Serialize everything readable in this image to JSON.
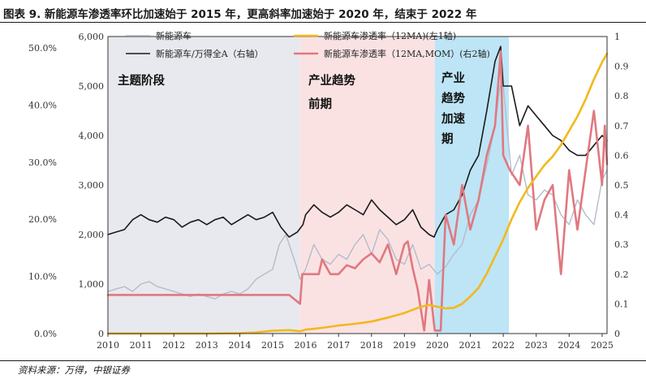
{
  "figure": {
    "title": "图表 9. 新能源车渗透率环比加速始于 2015 年，更高斜率加速始于 2020 年，结束于 2022 年",
    "source": "资料来源：万得，中银证券"
  },
  "colors": {
    "nev_sales": "#b3bccb",
    "index": "#1a1a1a",
    "penetration_12ma": "#f3b81c",
    "penetration_mom": "#e07880",
    "phase1_bg": "#e8e9ee",
    "phase2_bg": "#fae2e3",
    "phase3_bg": "#bde5f5"
  },
  "chart_data": {
    "type": "line",
    "title": "新能源车渗透率环比加速始于 2015 年，更高斜率加速始于 2020 年，结束于 2022 年",
    "xlim": [
      2010.0,
      2025.15
    ],
    "x_ticks": [
      2010,
      2011,
      2012,
      2013,
      2014,
      2015,
      2016,
      2017,
      2018,
      2019,
      2020,
      2021,
      2022,
      2023,
      2024,
      2025
    ],
    "x_tick_labels": [
      "2010",
      "2011",
      "2012",
      "2013",
      "2014",
      "2015",
      "2016",
      "2017",
      "2018",
      "2019",
      "2020",
      "2021",
      "2022",
      "2023",
      "2024",
      "2025"
    ],
    "axes": {
      "left_pct": {
        "ylim": [
          0,
          52
        ],
        "ticks": [
          0,
          10,
          20,
          30,
          40,
          50
        ],
        "tick_labels": [
          "0.0%",
          "10.0%",
          "20.0%",
          "30.0%",
          "40.0%",
          "50.0%"
        ]
      },
      "left_value": {
        "ylim": [
          0,
          6000
        ],
        "ticks": [
          0,
          1000,
          2000,
          3000,
          4000,
          5000,
          6000
        ],
        "tick_labels": [
          "0",
          "1,000",
          "2,000",
          "3,000",
          "4,000",
          "5,000",
          "6,000"
        ]
      },
      "right": {
        "ylim": [
          0,
          1.0
        ],
        "ticks": [
          0,
          0.1,
          0.2,
          0.3,
          0.4,
          0.5,
          0.6,
          0.7,
          0.8,
          0.9,
          1.0
        ],
        "tick_labels": [
          "0",
          "0.1",
          "0.2",
          "0.3",
          "0.4",
          "0.5",
          "0.6",
          "0.7",
          "0.8",
          "0.9",
          "1"
        ]
      }
    },
    "phases": [
      {
        "label_lines": [
          "主题阶段"
        ],
        "x_start": 2010.0,
        "x_end": 2015.83,
        "color_key": "phase1_bg"
      },
      {
        "label_lines": [
          "产业趋势",
          "前期"
        ],
        "x_start": 2015.83,
        "x_end": 2019.92,
        "color_key": "phase2_bg"
      },
      {
        "label_lines": [
          "产业",
          "趋势",
          "加速",
          "期"
        ],
        "x_start": 2019.92,
        "x_end": 2022.17,
        "color_key": "phase3_bg"
      }
    ],
    "legend": [
      {
        "label": "新能源车",
        "color_key": "nev_sales",
        "column": 0,
        "row": 0
      },
      {
        "label": "新能源车渗透率（12MA)(左1轴)",
        "color_key": "penetration_12ma",
        "column": 1,
        "row": 0
      },
      {
        "label": "新能源车/万得全A（右轴）",
        "color_key": "index",
        "column": 0,
        "row": 1
      },
      {
        "label": "新能源车渗透率（12MA,MOM）(右2轴)",
        "color_key": "penetration_mom",
        "column": 1,
        "row": 1
      }
    ],
    "series": [
      {
        "name": "新能源车",
        "axis": "left_value",
        "color_key": "nev_sales",
        "x": [
          2010.0,
          2010.25,
          2010.5,
          2010.75,
          2011.0,
          2011.25,
          2011.5,
          2011.75,
          2012.0,
          2012.25,
          2012.5,
          2012.75,
          2013.0,
          2013.25,
          2013.5,
          2013.75,
          2014.0,
          2014.25,
          2014.5,
          2014.75,
          2015.0,
          2015.2,
          2015.4,
          2015.5,
          2015.7,
          2015.83,
          2016.0,
          2016.25,
          2016.5,
          2016.75,
          2017.0,
          2017.25,
          2017.5,
          2017.75,
          2018.0,
          2018.25,
          2018.5,
          2018.75,
          2019.0,
          2019.25,
          2019.5,
          2019.75,
          2020.0,
          2020.25,
          2020.5,
          2020.75,
          2021.0,
          2021.25,
          2021.5,
          2021.75,
          2021.9,
          2022.0,
          2022.25,
          2022.5,
          2022.75,
          2023.0,
          2023.25,
          2023.5,
          2023.75,
          2024.0,
          2024.25,
          2024.5,
          2024.75,
          2025.0,
          2025.15
        ],
        "values": [
          850,
          900,
          950,
          850,
          1000,
          1050,
          950,
          900,
          850,
          800,
          750,
          800,
          750,
          700,
          800,
          850,
          800,
          900,
          1100,
          1200,
          1300,
          1800,
          2000,
          1800,
          1400,
          1100,
          1300,
          1800,
          1500,
          1400,
          1600,
          1500,
          1800,
          2000,
          1600,
          2100,
          1900,
          1500,
          1400,
          1800,
          1300,
          1400,
          1200,
          1350,
          1600,
          1800,
          2400,
          2700,
          3400,
          4200,
          5000,
          5000,
          3200,
          3600,
          2800,
          2700,
          2900,
          2800,
          2400,
          2200,
          2700,
          2400,
          2200,
          3100,
          3300
        ]
      },
      {
        "name": "新能源车/万得全A（右轴）",
        "axis": "left_value",
        "color_key": "index",
        "x": [
          2010.0,
          2010.25,
          2010.5,
          2010.75,
          2011.0,
          2011.25,
          2011.5,
          2011.75,
          2012.0,
          2012.25,
          2012.5,
          2012.75,
          2013.0,
          2013.25,
          2013.5,
          2013.75,
          2014.0,
          2014.25,
          2014.5,
          2014.75,
          2015.0,
          2015.25,
          2015.5,
          2015.75,
          2015.92,
          2016.0,
          2016.25,
          2016.5,
          2016.75,
          2017.0,
          2017.25,
          2017.5,
          2017.75,
          2018.0,
          2018.25,
          2018.5,
          2018.75,
          2019.0,
          2019.25,
          2019.5,
          2019.75,
          2019.9,
          2020.0,
          2020.25,
          2020.5,
          2020.75,
          2021.0,
          2021.25,
          2021.5,
          2021.75,
          2021.92,
          2022.0,
          2022.25,
          2022.5,
          2022.75,
          2023.0,
          2023.25,
          2023.5,
          2023.75,
          2024.0,
          2024.25,
          2024.5,
          2024.75,
          2025.0,
          2025.15
        ],
        "values": [
          2000,
          2050,
          2100,
          2300,
          2400,
          2300,
          2250,
          2350,
          2300,
          2150,
          2250,
          2300,
          2200,
          2300,
          2350,
          2200,
          2300,
          2400,
          2300,
          2350,
          2450,
          2150,
          1950,
          2050,
          2200,
          2400,
          2600,
          2450,
          2350,
          2450,
          2600,
          2500,
          2400,
          2700,
          2500,
          2350,
          2200,
          2300,
          2500,
          2150,
          2000,
          1950,
          2100,
          2400,
          2500,
          2800,
          3300,
          3600,
          4500,
          5500,
          5800,
          5000,
          5000,
          4200,
          4600,
          4400,
          4200,
          4000,
          3900,
          3700,
          3600,
          3600,
          3800,
          4000,
          3900
        ]
      },
      {
        "name": "新能源车渗透率（12MA)(左1轴)",
        "axis": "left_pct",
        "color_key": "penetration_12ma",
        "x": [
          2010.0,
          2011.0,
          2012.0,
          2013.0,
          2014.0,
          2014.5,
          2015.0,
          2015.5,
          2015.83,
          2016.0,
          2016.5,
          2017.0,
          2017.5,
          2018.0,
          2018.5,
          2019.0,
          2019.5,
          2019.75,
          2020.0,
          2020.25,
          2020.5,
          2020.75,
          2021.0,
          2021.25,
          2021.5,
          2021.75,
          2022.0,
          2022.25,
          2022.5,
          2022.75,
          2023.0,
          2023.25,
          2023.5,
          2023.75,
          2024.0,
          2024.25,
          2024.5,
          2024.75,
          2025.0,
          2025.15
        ],
        "values": [
          0.0,
          0.0,
          0.0,
          0.0,
          0.05,
          0.2,
          0.5,
          0.6,
          0.4,
          0.7,
          1.0,
          1.4,
          1.7,
          2.1,
          2.8,
          3.6,
          4.7,
          5.0,
          4.7,
          4.4,
          4.5,
          5.2,
          6.5,
          8.0,
          10.5,
          13.5,
          16.5,
          20.0,
          23.0,
          25.5,
          27.5,
          29.5,
          31.0,
          33.0,
          35.5,
          38.0,
          41.0,
          44.5,
          47.5,
          49.0
        ]
      },
      {
        "name": "新能源车渗透率（12MA,MOM）(右2轴)",
        "axis": "right",
        "color_key": "penetration_mom",
        "x": [
          2010.0,
          2011.0,
          2012.0,
          2013.0,
          2014.0,
          2015.0,
          2015.5,
          2015.83,
          2015.9,
          2016.0,
          2016.25,
          2016.4,
          2016.5,
          2016.75,
          2017.0,
          2017.25,
          2017.5,
          2017.75,
          2018.0,
          2018.25,
          2018.5,
          2018.75,
          2019.0,
          2019.1,
          2019.25,
          2019.4,
          2019.6,
          2019.75,
          2019.92,
          2020.0,
          2020.1,
          2020.25,
          2020.5,
          2020.75,
          2021.0,
          2021.25,
          2021.5,
          2021.75,
          2021.92,
          2022.0,
          2022.2,
          2022.5,
          2022.75,
          2023.0,
          2023.25,
          2023.5,
          2023.75,
          2024.0,
          2024.25,
          2024.5,
          2024.75,
          2025.0,
          2025.08,
          2025.15
        ],
        "values": [
          0.13,
          0.13,
          0.13,
          0.13,
          0.13,
          0.13,
          0.13,
          0.1,
          0.2,
          0.2,
          0.2,
          0.2,
          0.25,
          0.2,
          0.2,
          0.23,
          0.22,
          0.25,
          0.27,
          0.24,
          0.3,
          0.2,
          0.3,
          0.31,
          0.22,
          0.15,
          0.01,
          0.18,
          0.01,
          0.01,
          0.01,
          0.4,
          0.3,
          0.5,
          0.35,
          0.45,
          0.6,
          0.7,
          0.95,
          0.6,
          0.55,
          0.5,
          0.7,
          0.35,
          0.45,
          0.5,
          0.2,
          0.55,
          0.35,
          0.55,
          0.75,
          0.5,
          0.7,
          0.57
        ]
      }
    ]
  }
}
